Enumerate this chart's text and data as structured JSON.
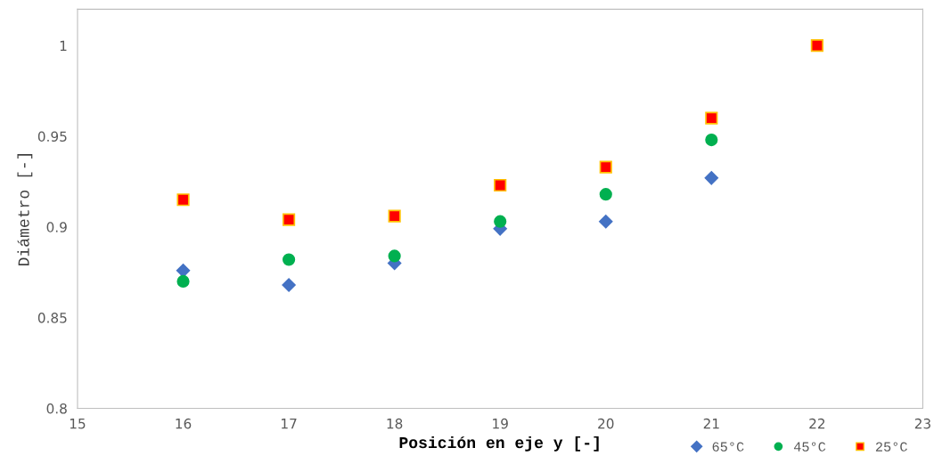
{
  "chart_data": {
    "type": "scatter",
    "xlabel": "Posición en eje y [-]",
    "ylabel": "Diámetro [-]",
    "xlim": [
      15,
      23
    ],
    "xticks": [
      15,
      16,
      17,
      18,
      19,
      20,
      21,
      22,
      23
    ],
    "ylim": [
      0.8,
      1.02
    ],
    "yticks": [
      0.8,
      0.85,
      0.9,
      0.95,
      1
    ],
    "grid": false,
    "legend": "bottom right",
    "series": [
      {
        "name": "65°C",
        "color": "#4472c4",
        "marker": "diamond",
        "x": [
          16,
          17,
          18,
          19,
          20,
          21
        ],
        "values": [
          0.876,
          0.868,
          0.88,
          0.899,
          0.903,
          0.927
        ]
      },
      {
        "name": "45°C",
        "color": "#00b050",
        "marker": "circle",
        "x": [
          16,
          17,
          18,
          19,
          20,
          21
        ],
        "values": [
          0.87,
          0.882,
          0.884,
          0.903,
          0.918,
          0.948
        ]
      },
      {
        "name": "25°C",
        "color": "#ff0000",
        "marker": "square",
        "x": [
          16,
          17,
          18,
          19,
          20,
          21,
          22
        ],
        "values": [
          0.915,
          0.904,
          0.906,
          0.923,
          0.933,
          0.96,
          1.0
        ]
      }
    ]
  }
}
